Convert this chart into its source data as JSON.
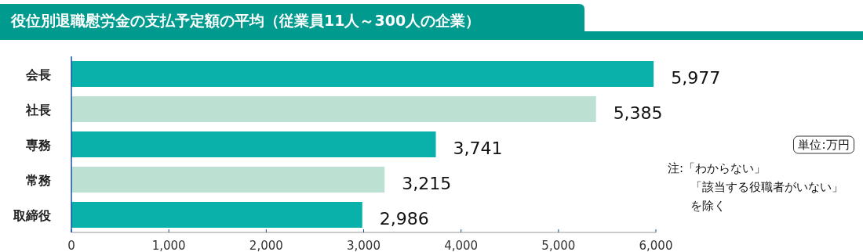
{
  "chart_data": {
    "type": "bar",
    "orientation": "horizontal",
    "title": "役位別退職慰労金の支払予定額の平均（従業員11人～300人の企業）",
    "categories": [
      "会長",
      "社長",
      "専務",
      "常務",
      "取締役"
    ],
    "values": [
      5977,
      5385,
      3741,
      3215,
      2986
    ],
    "colors": [
      "#09b1aa",
      "#bce0d2",
      "#09b1aa",
      "#bce0d2",
      "#09b1aa"
    ],
    "xlim": [
      0,
      6000
    ],
    "xticks": [
      0,
      {
        "value": 1000,
        "label": "1,000"
      },
      {
        "value": 2000,
        "label": "2,000"
      },
      {
        "value": 3000,
        "label": "3,000"
      },
      {
        "value": 4000,
        "label": "4,000"
      },
      {
        "value": 5000,
        "label": "5,000"
      },
      {
        "value": 6000,
        "label": "6,000"
      }
    ],
    "value_labels": [
      "5,977",
      "5,385",
      "3,741",
      "3,215",
      "2,986"
    ],
    "annotations": [
      "単位:万円",
      "注:「わからない」",
      "「該当する役職者がいない」",
      "を除く"
    ]
  }
}
